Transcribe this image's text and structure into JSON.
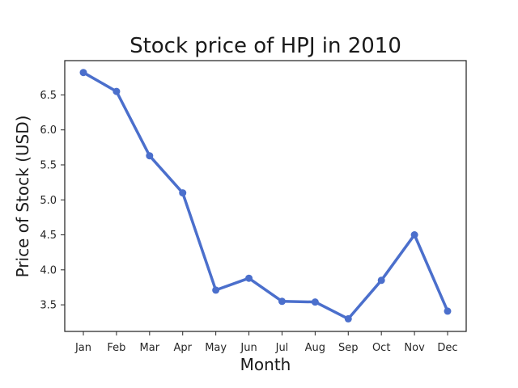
{
  "chart_data": {
    "type": "line",
    "title": "Stock price of HPJ in 2010",
    "xlabel": "Month",
    "ylabel": "Price of Stock (USD)",
    "categories": [
      "Jan",
      "Feb",
      "Mar",
      "Apr",
      "May",
      "Jun",
      "Jul",
      "Aug",
      "Sep",
      "Oct",
      "Nov",
      "Dec"
    ],
    "series": [
      {
        "values": [
          6.82,
          6.55,
          5.63,
          5.1,
          3.71,
          3.88,
          3.55,
          3.54,
          3.3,
          3.85,
          4.5,
          3.41
        ]
      }
    ],
    "yticks": [
      3.5,
      4.0,
      4.5,
      5.0,
      5.5,
      6.0,
      6.5
    ],
    "ytick_labels": [
      "3.5",
      "4.0",
      "4.5",
      "5.0",
      "5.5",
      "6.0",
      "6.5"
    ],
    "ylim": [
      3.12,
      6.99
    ],
    "grid": false,
    "line_color": "#4b6fcc"
  }
}
